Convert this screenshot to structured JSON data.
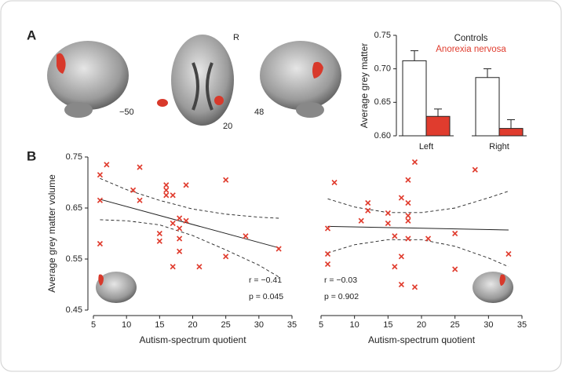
{
  "panel_labels": [
    "A",
    "B"
  ],
  "brain_labels": {
    "orientation": "R",
    "slice_left": "−50",
    "slice_axial": "20",
    "slice_right": "48"
  },
  "chart_data": [
    {
      "type": "bar",
      "ylabel": "Average grey matter",
      "categories": [
        "Left",
        "Right"
      ],
      "series": [
        {
          "name": "Controls",
          "color": "#ffffff",
          "values": [
            0.712,
            0.687
          ],
          "errors": [
            0.015,
            0.013
          ]
        },
        {
          "name": "Anorexia nervosa",
          "color": "#e03c2e",
          "values": [
            0.629,
            0.611
          ],
          "errors": [
            0.011,
            0.013
          ]
        }
      ],
      "ylim": [
        0.6,
        0.75
      ],
      "yticks": [
        {
          "value": 0.6,
          "label": "0.60"
        },
        0.65,
        {
          "value": 0.7,
          "label": "0.70"
        },
        0.75
      ]
    },
    {
      "type": "scatter",
      "xlabel": "Autism-spectrum quotient",
      "ylabel": "Average grey matter volume",
      "color": "#e03c2e",
      "x": [
        7,
        6,
        12,
        6,
        11,
        12,
        16,
        16,
        19,
        17,
        16,
        18,
        17,
        15,
        15,
        18,
        18,
        19,
        18,
        6,
        17,
        21,
        25,
        25,
        28,
        33
      ],
      "values": [
        0.735,
        0.715,
        0.73,
        0.665,
        0.685,
        0.665,
        0.695,
        0.685,
        0.695,
        0.675,
        0.675,
        0.63,
        0.62,
        0.6,
        0.585,
        0.61,
        0.59,
        0.625,
        0.565,
        0.58,
        0.535,
        0.535,
        0.705,
        0.555,
        0.595,
        0.57
      ],
      "fit": {
        "x": [
          6,
          33
        ],
        "values": [
          0.667,
          0.572
        ]
      },
      "ci_upper": {
        "x": [
          6,
          10,
          15,
          20,
          25,
          30,
          33
        ],
        "values": [
          0.708,
          0.686,
          0.665,
          0.648,
          0.638,
          0.632,
          0.63
        ]
      },
      "ci_lower": {
        "x": [
          6,
          10,
          15,
          20,
          25,
          30,
          33
        ],
        "values": [
          0.627,
          0.625,
          0.617,
          0.596,
          0.568,
          0.538,
          0.515
        ]
      },
      "annotations": [
        "r = −0.41",
        "p = 0.045"
      ],
      "xlim": [
        5,
        35
      ],
      "xticks": [
        5,
        10,
        15,
        20,
        25,
        30,
        35
      ],
      "ylim": [
        0.45,
        0.75
      ],
      "yticks": [
        0.45,
        0.55,
        0.65,
        0.75
      ]
    },
    {
      "type": "scatter",
      "xlabel": "Autism-spectrum quotient",
      "color": "#e03c2e",
      "x": [
        19,
        28,
        7,
        18,
        12,
        17,
        18,
        11,
        12,
        15,
        15,
        18,
        16,
        18,
        21,
        25,
        6,
        17,
        6,
        6,
        16,
        25,
        33,
        17,
        19,
        18
      ],
      "values": [
        0.74,
        0.725,
        0.7,
        0.705,
        0.66,
        0.67,
        0.66,
        0.625,
        0.645,
        0.64,
        0.62,
        0.635,
        0.595,
        0.59,
        0.59,
        0.6,
        0.61,
        0.555,
        0.56,
        0.54,
        0.535,
        0.53,
        0.56,
        0.5,
        0.495,
        0.625
      ],
      "fit": {
        "x": [
          6,
          33
        ],
        "values": [
          0.614,
          0.607
        ]
      },
      "ci_upper": {
        "x": [
          6,
          10,
          15,
          20,
          25,
          30,
          33
        ],
        "values": [
          0.668,
          0.652,
          0.641,
          0.641,
          0.65,
          0.67,
          0.683
        ]
      },
      "ci_lower": {
        "x": [
          6,
          10,
          15,
          20,
          25,
          30,
          33
        ],
        "values": [
          0.562,
          0.578,
          0.588,
          0.588,
          0.575,
          0.552,
          0.535
        ]
      },
      "annotations": [
        "r = −0.03",
        "p = 0.902"
      ],
      "xlim": [
        5,
        35
      ],
      "xticks": [
        5,
        10,
        15,
        20,
        25,
        30,
        35
      ],
      "ylim": [
        0.45,
        0.75
      ]
    }
  ]
}
